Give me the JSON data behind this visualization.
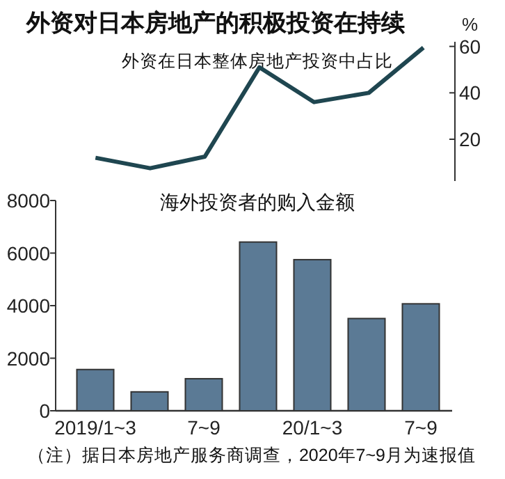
{
  "chart_data": [
    {
      "type": "line",
      "title": "外资对日本房地产的积极投资在持续",
      "subtitle": "外资在日本整体房地产投资中占比",
      "ylabel": "%",
      "categories": [
        null,
        null,
        null,
        null,
        null,
        null,
        null
      ],
      "series": [
        {
          "color": "#1f4650",
          "values": [
            12,
            7.5,
            12.5,
            51,
            36,
            40,
            59.5
          ]
        }
      ],
      "ylim": [
        2,
        62
      ],
      "yticks": [
        20,
        40,
        60
      ],
      "marker": "none",
      "line_style": "solid"
    },
    {
      "type": "bar",
      "title": "海外投资者的购入金额",
      "categories": [
        "2019/1~3",
        null,
        "7~9",
        null,
        "20/1~3",
        null,
        "7~9"
      ],
      "series": [
        {
          "color": "#5b7a95",
          "values": [
            1570,
            720,
            1220,
            6420,
            5750,
            3510,
            4070
          ]
        }
      ],
      "ylim": [
        0,
        8000
      ],
      "yticks": [
        0,
        2000,
        4000,
        6000,
        8000
      ],
      "annotations": [
        "（注）据日本房地产服务商调查，2020年7~9月为速报值"
      ]
    }
  ]
}
